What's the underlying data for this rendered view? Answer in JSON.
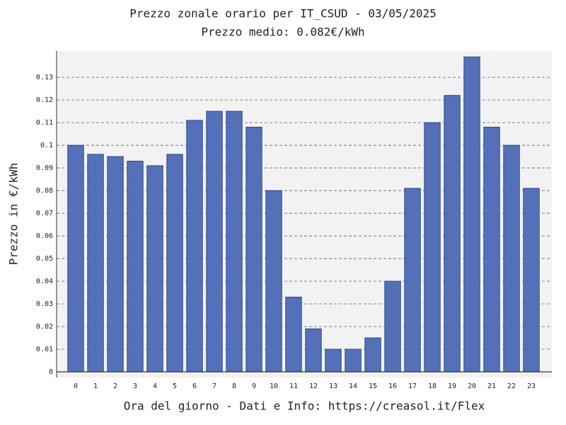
{
  "chart_data": {
    "type": "bar",
    "title": "Prezzo zonale orario per IT_CSUD - 03/05/2025",
    "subtitle": "Prezzo medio: 0.082€/kWh",
    "x_label": "Ora del giorno - Dati e Info: https://creasol.it/Flex",
    "y_label": "Prezzo in €/kWh",
    "categories": [
      "0",
      "1",
      "2",
      "3",
      "4",
      "5",
      "6",
      "7",
      "8",
      "9",
      "10",
      "11",
      "12",
      "13",
      "14",
      "15",
      "16",
      "17",
      "18",
      "19",
      "20",
      "21",
      "22",
      "23"
    ],
    "values": [
      0.1,
      0.096,
      0.095,
      0.093,
      0.091,
      0.096,
      0.111,
      0.115,
      0.115,
      0.108,
      0.08,
      0.033,
      0.019,
      0.01,
      0.01,
      0.015,
      0.04,
      0.081,
      0.11,
      0.122,
      0.139,
      0.108,
      0.1,
      0.081
    ],
    "color": "#5470b8",
    "ylim": [
      -0.0025,
      0.1416
    ],
    "yticks": [
      0,
      0.01,
      0.02,
      0.03,
      0.04,
      0.05,
      0.06,
      0.07,
      0.08,
      0.09,
      0.1,
      0.11,
      0.12,
      0.13
    ],
    "grid": true
  }
}
